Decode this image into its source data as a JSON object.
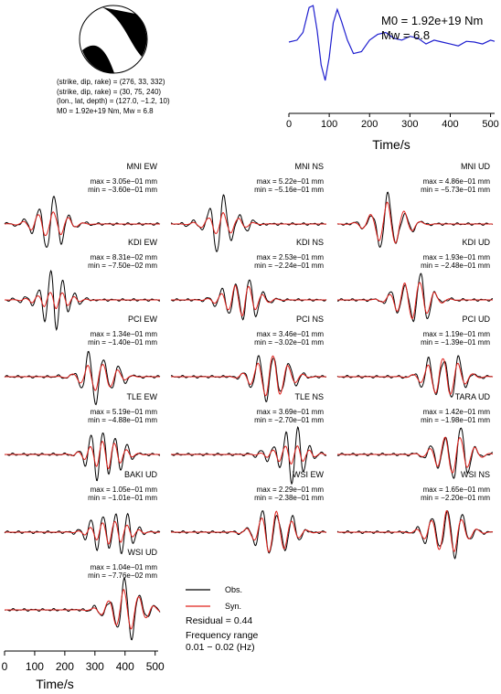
{
  "source": {
    "mechanism1": "(strike, dip, rake) = (276, 33, 332)",
    "mechanism2": "(strike, dip, rake) = (30, 75, 240)",
    "location": "(lon., lat, depth) = (127.0, −1.2, 10)",
    "moment_line": "M0 = 1.92e+19 Nm, Mw = 6.8",
    "stf_m0": "M0 = 1.92e+19 Nm",
    "stf_mw": "Mw = 6.8"
  },
  "legend": {
    "obs": "Obs.",
    "syn": "Syn.",
    "residual": "Residual = 0.44",
    "freq_label": "Frequency range",
    "freq_value": "0.01 − 0.02 (Hz)"
  },
  "colors": {
    "obs": "#000000",
    "syn": "#e0201b",
    "stf": "#1f1fcf",
    "beachball": "#000000"
  },
  "chart_data": [
    {
      "type": "line",
      "name": "source-time-function",
      "xlabel": "Time/s",
      "xlim": [
        0,
        510
      ],
      "xticks": [
        0,
        100,
        200,
        300,
        400,
        500
      ],
      "series": [
        {
          "x": [
            0,
            20,
            35,
            50,
            60,
            70,
            80,
            90,
            100,
            110,
            120,
            130,
            145,
            160,
            180,
            200,
            220,
            240,
            260,
            280,
            300,
            320,
            340,
            360,
            380,
            400,
            420,
            440,
            460,
            480,
            500,
            510
          ],
          "y": [
            0,
            0.05,
            0.25,
            0.9,
            0.95,
            0.3,
            -0.6,
            -1.0,
            -0.4,
            0.5,
            0.85,
            0.55,
            0.05,
            -0.3,
            -0.25,
            0.05,
            0.2,
            0.25,
            0.1,
            0.05,
            0.15,
            0.1,
            -0.05,
            0.05,
            0.0,
            -0.05,
            -0.1,
            0.02,
            0.0,
            -0.05,
            0.05,
            0.02
          ]
        }
      ]
    },
    {
      "type": "line",
      "name": "waveform-comparison",
      "xlabel": "Time/s",
      "xlim": [
        0,
        510
      ],
      "xticks": [
        0,
        100,
        200,
        300,
        400,
        500
      ],
      "panels": [
        {
          "station": "MNI EW",
          "max": "max = 3.05e−01 mm",
          "min": "min = −3.60e−01 mm",
          "t0": 150,
          "freq": 0.02,
          "amp": 0.9,
          "syn_fit": 0.55
        },
        {
          "station": "MNI NS",
          "max": "max = 5.22e−01 mm",
          "min": "min = −5.16e−01 mm",
          "t0": 170,
          "freq": 0.02,
          "amp": 0.9,
          "syn_fit": 0.45
        },
        {
          "station": "MNI UD",
          "max": "max = 4.86e−01 mm",
          "min": "min = −5.73e−01 mm",
          "t0": 170,
          "freq": 0.018,
          "amp": 0.9,
          "syn_fit": 0.9
        },
        {
          "station": "KDI EW",
          "max": "max = 8.31e−02 mm",
          "min": "min = −7.50e−02 mm",
          "t0": 160,
          "freq": 0.025,
          "amp": 0.9,
          "syn_fit": 0.35
        },
        {
          "station": "KDI NS",
          "max": "max = 2.53e−01 mm",
          "min": "min = −2.24e−01 mm",
          "t0": 230,
          "freq": 0.022,
          "amp": 0.85,
          "syn_fit": 0.7
        },
        {
          "station": "KDI UD",
          "max": "max = 1.93e−01 mm",
          "min": "min = −2.48e−01 mm",
          "t0": 250,
          "freq": 0.02,
          "amp": 0.9,
          "syn_fit": 0.85
        },
        {
          "station": "PCI EW",
          "max": "max = 1.34e−01 mm",
          "min": "min = −1.40e−01 mm",
          "t0": 310,
          "freq": 0.02,
          "amp": 0.9,
          "syn_fit": 0.6
        },
        {
          "station": "PCI NS",
          "max": "max = 3.46e−01 mm",
          "min": "min = −3.02e−01 mm",
          "t0": 330,
          "freq": 0.02,
          "amp": 0.95,
          "syn_fit": 0.85
        },
        {
          "station": "PCI UD",
          "max": "max = 1.19e−01 mm",
          "min": "min = −1.39e−01 mm",
          "t0": 350,
          "freq": 0.02,
          "amp": 0.95,
          "syn_fit": 0.8
        },
        {
          "station": "TLE EW",
          "max": "max = 5.19e−01 mm",
          "min": "min = −4.88e−01 mm",
          "t0": 330,
          "freq": 0.025,
          "amp": 0.95,
          "syn_fit": 0.55
        },
        {
          "station": "TLE NS",
          "max": "max = 3.69e−01 mm",
          "min": "min = −2.70e−01 mm",
          "t0": 390,
          "freq": 0.025,
          "amp": 0.9,
          "syn_fit": 0.4
        },
        {
          "station": "TARA UD",
          "max": "max = 1.42e−01 mm",
          "min": "min = −1.98e−01 mm",
          "t0": 380,
          "freq": 0.02,
          "amp": 0.95,
          "syn_fit": 0.8
        },
        {
          "station": "BAKI UD",
          "max": "max = 1.05e−01 mm",
          "min": "min = −1.01e−01 mm",
          "t0": 350,
          "freq": 0.025,
          "amp": 0.95,
          "syn_fit": 0.5
        },
        {
          "station": "WSI EW",
          "max": "max = 2.29e−01 mm",
          "min": "min = −2.38e−01 mm",
          "t0": 340,
          "freq": 0.02,
          "amp": 0.95,
          "syn_fit": 0.85
        },
        {
          "station": "WSI NS",
          "max": "max = 1.65e−01 mm",
          "min": "min = −2.20e−01 mm",
          "t0": 360,
          "freq": 0.02,
          "amp": 0.95,
          "syn_fit": 0.85
        },
        {
          "station": "WSI UD",
          "max": "max = 1.04e−01 mm",
          "min": "min = −7.76e−02 mm",
          "t0": 400,
          "freq": 0.02,
          "amp": 0.95,
          "syn_fit": 0.8
        }
      ]
    }
  ]
}
